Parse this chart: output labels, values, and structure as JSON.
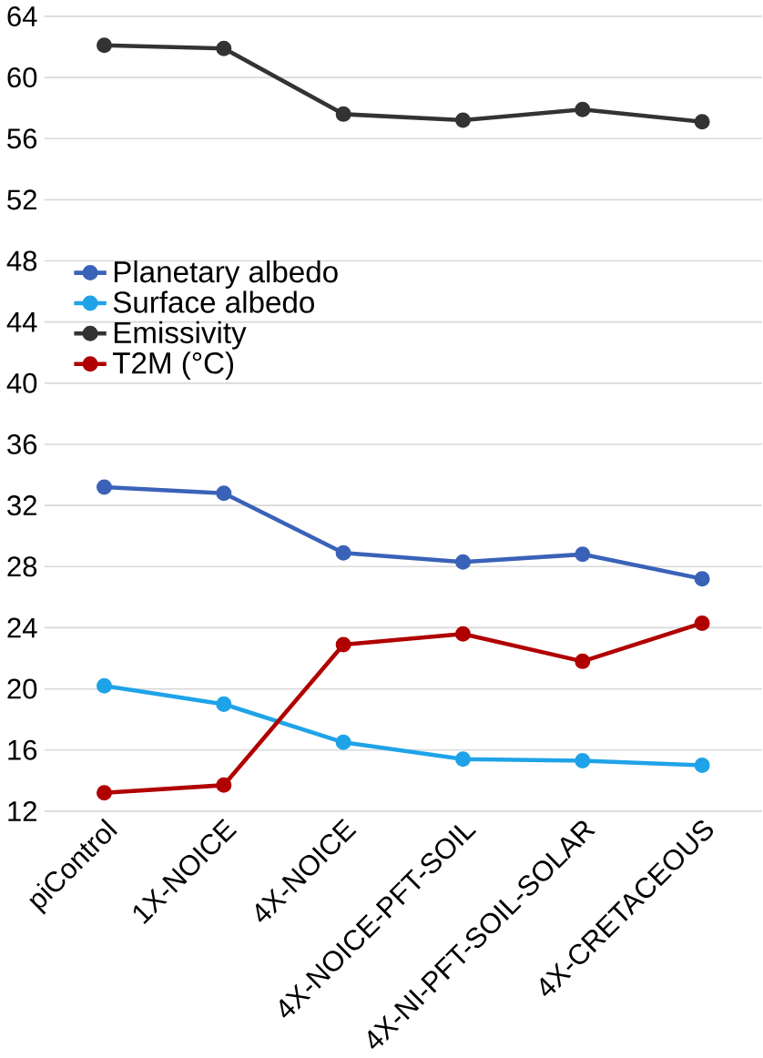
{
  "chart_data": {
    "type": "line",
    "categories": [
      "piControl",
      "1X-NOICE",
      "4X-NOICE",
      "4X-NOICE-PFT-SOIL",
      "4X-NI-PFT-SOIL-SOLAR",
      "4X-CRETACEOUS"
    ],
    "series": [
      {
        "name": "Planetary albedo",
        "color": "#3a62b8",
        "values": [
          33.2,
          32.8,
          28.9,
          28.3,
          28.8,
          27.2
        ]
      },
      {
        "name": "Surface albedo",
        "color": "#1fa3e8",
        "values": [
          20.2,
          19.0,
          16.5,
          15.4,
          15.3,
          15.0
        ]
      },
      {
        "name": "Emissivity",
        "color": "#333333",
        "values": [
          62.1,
          61.9,
          57.6,
          57.2,
          57.9,
          57.1
        ]
      },
      {
        "name": "T2M (°C)",
        "color": "#b00000",
        "values": [
          13.2,
          13.7,
          22.9,
          23.6,
          21.8,
          24.3
        ]
      }
    ],
    "ylim": [
      12,
      64
    ],
    "yticks": [
      12,
      16,
      20,
      24,
      28,
      32,
      36,
      40,
      44,
      48,
      52,
      56,
      60,
      64
    ],
    "grid": "y",
    "legend": "left",
    "marker": "circle",
    "line_style": "solid"
  }
}
